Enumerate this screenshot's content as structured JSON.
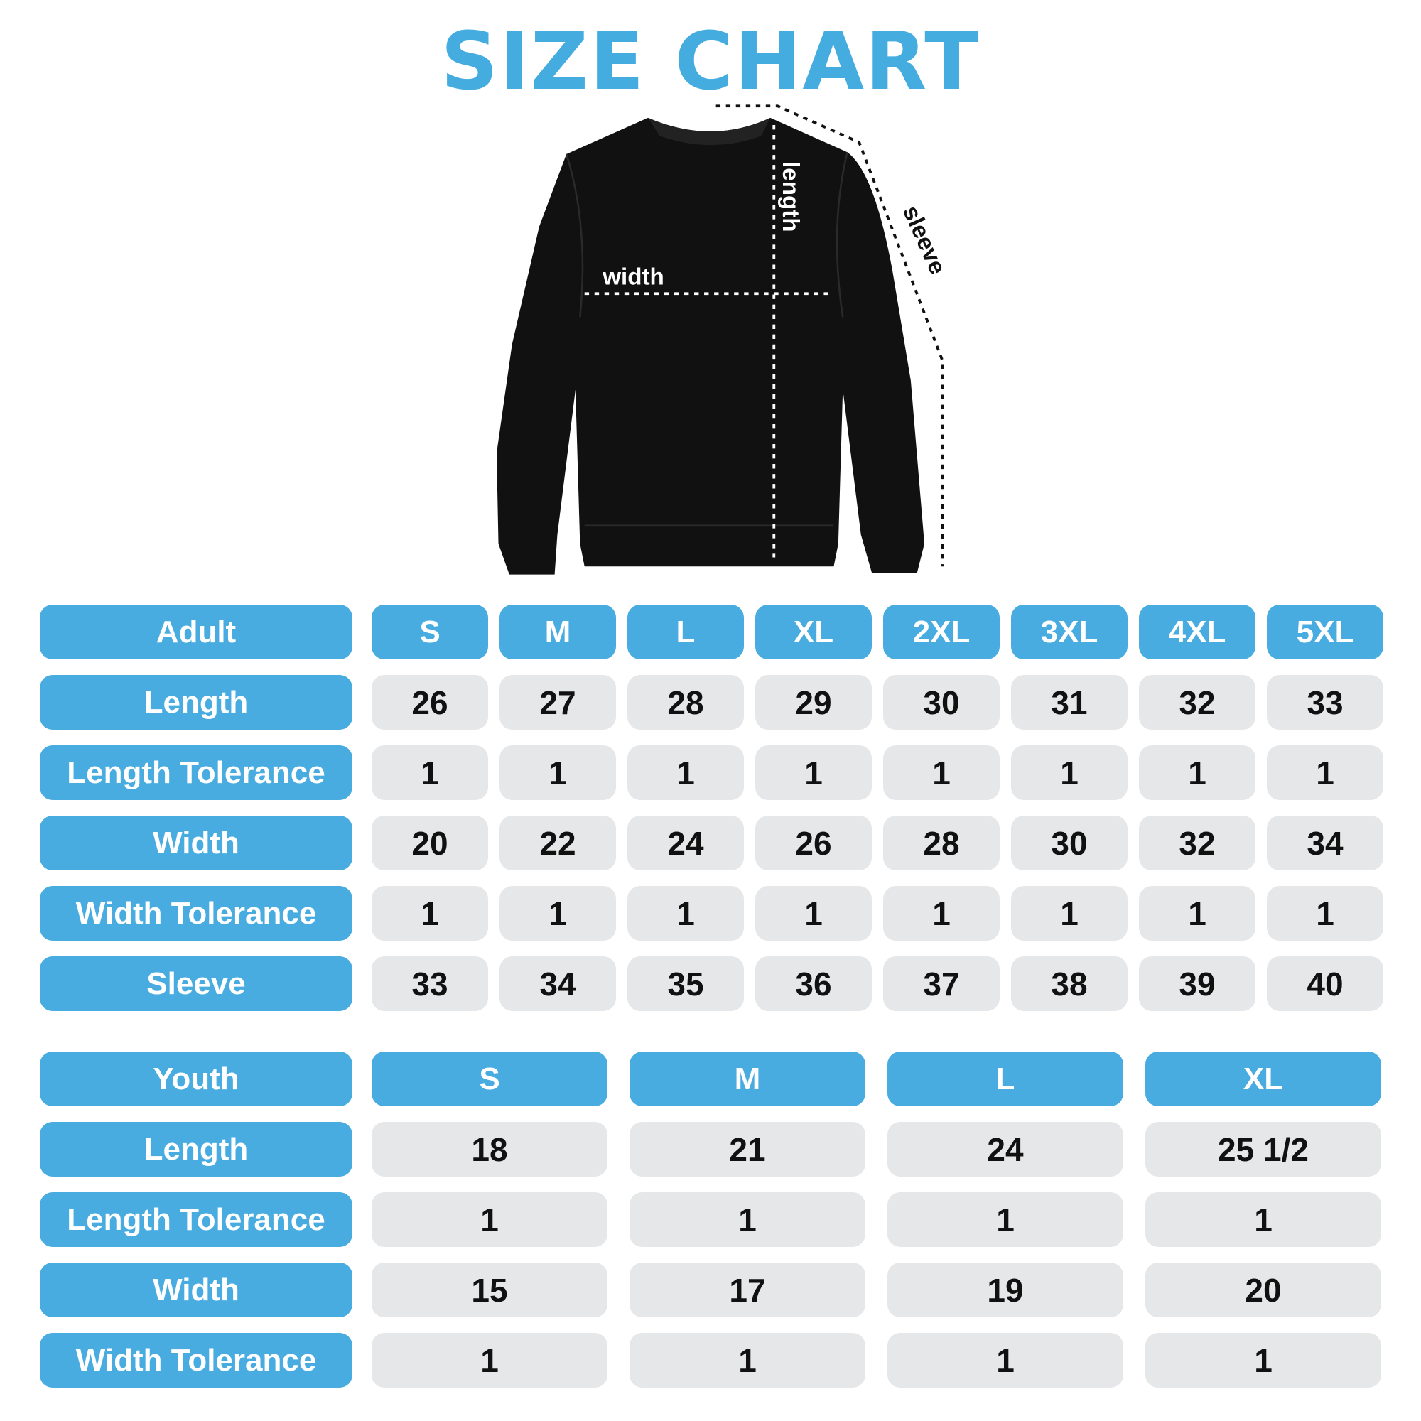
{
  "title": "SIZE CHART",
  "colors": {
    "accent": "#48ACE0",
    "cell": "#E6E7E8",
    "garment": "#111111"
  },
  "illustration": {
    "labels": {
      "length": "length",
      "width": "width",
      "sleeve": "sleeve"
    }
  },
  "adult": {
    "header": "Adult",
    "sizes": [
      "S",
      "M",
      "L",
      "XL",
      "2XL",
      "3XL",
      "4XL",
      "5XL"
    ],
    "rows": [
      {
        "label": "Length",
        "values": [
          "26",
          "27",
          "28",
          "29",
          "30",
          "31",
          "32",
          "33"
        ]
      },
      {
        "label": "Length Tolerance",
        "values": [
          "1",
          "1",
          "1",
          "1",
          "1",
          "1",
          "1",
          "1"
        ]
      },
      {
        "label": "Width",
        "values": [
          "20",
          "22",
          "24",
          "26",
          "28",
          "30",
          "32",
          "34"
        ]
      },
      {
        "label": "Width Tolerance",
        "values": [
          "1",
          "1",
          "1",
          "1",
          "1",
          "1",
          "1",
          "1"
        ]
      },
      {
        "label": "Sleeve",
        "values": [
          "33",
          "34",
          "35",
          "36",
          "37",
          "38",
          "39",
          "40"
        ]
      }
    ]
  },
  "youth": {
    "header": "Youth",
    "sizes": [
      "S",
      "M",
      "L",
      "XL"
    ],
    "rows": [
      {
        "label": "Length",
        "values": [
          "18",
          "21",
          "24",
          "25 1/2"
        ]
      },
      {
        "label": "Length Tolerance",
        "values": [
          "1",
          "1",
          "1",
          "1"
        ]
      },
      {
        "label": "Width",
        "values": [
          "15",
          "17",
          "19",
          "20"
        ]
      },
      {
        "label": "Width Tolerance",
        "values": [
          "1",
          "1",
          "1",
          "1"
        ]
      }
    ]
  }
}
